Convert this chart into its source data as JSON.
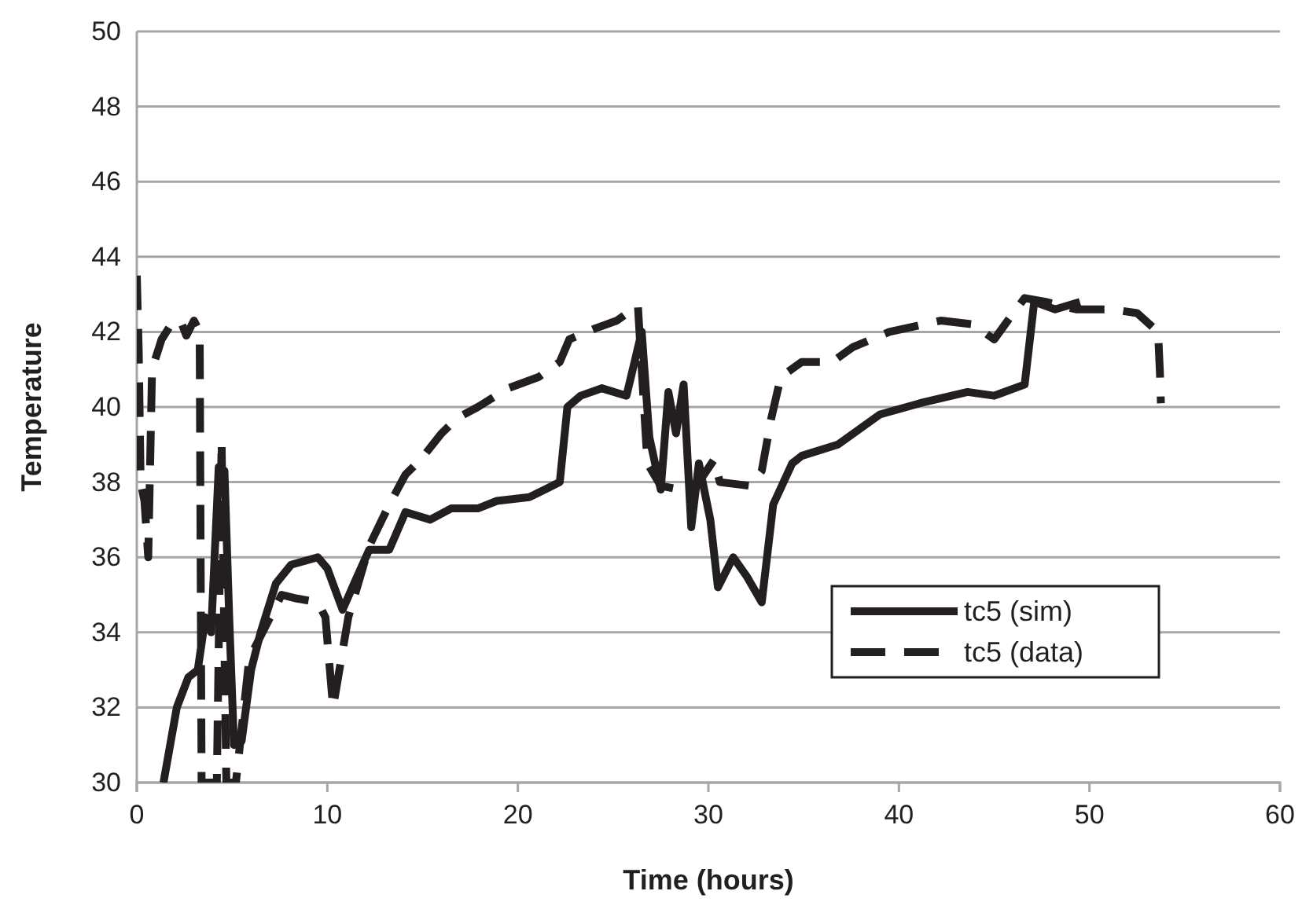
{
  "chart_data": {
    "type": "line",
    "xlabel": "Time (hours)",
    "ylabel": "Temperature",
    "xlim": [
      0,
      60
    ],
    "xticks": [
      0,
      10,
      20,
      30,
      40,
      50,
      60
    ],
    "ylim": [
      30,
      50
    ],
    "yticks": [
      30,
      32,
      34,
      36,
      38,
      40,
      42,
      44,
      46,
      48,
      50
    ],
    "grid": "y",
    "legend": "bottom right",
    "marker": "none",
    "series": [
      {
        "name": "tc5 (sim)",
        "color": "#231f20",
        "line_style": "solid",
        "x": [
          1.4,
          2.1,
          2.7,
          3.2,
          3.6,
          3.9,
          4.3,
          4.6,
          4.85,
          5.1,
          5.5,
          6.0,
          6.5,
          7.3,
          8.1,
          9.5,
          10,
          10.8,
          11.4,
          12.2,
          13.25,
          14.1,
          15.4,
          16.5,
          17.9,
          18.9,
          20.6,
          21.4,
          22.2,
          22.6,
          23.3,
          24.4,
          25.7,
          26.5,
          26.9,
          27.5,
          27.9,
          28.3,
          28.7,
          29.1,
          29.5,
          30.1,
          30.5,
          31.3,
          32,
          32.8,
          33.4,
          34.4,
          34.9,
          36.8,
          39,
          41.1,
          43.6,
          45,
          46.6,
          47.1,
          48.2,
          49.5
        ],
        "values": [
          30,
          32,
          32.8,
          33,
          34.4,
          34,
          38.4,
          38.3,
          34.4,
          31,
          31.1,
          33,
          34,
          35.3,
          35.8,
          36,
          35.7,
          34.6,
          35.3,
          36.2,
          36.2,
          37.2,
          37,
          37.3,
          37.3,
          37.5,
          37.6,
          37.8,
          38,
          40,
          40.3,
          40.5,
          40.3,
          42,
          39.2,
          37.8,
          40.4,
          39.3,
          40.6,
          36.8,
          38.5,
          37,
          35.2,
          36,
          35.5,
          34.8,
          37.4,
          38.5,
          38.7,
          39,
          39.8,
          40.1,
          40.4,
          40.3,
          40.6,
          42.8,
          42.6,
          42.8
        ]
      },
      {
        "name": "tc5 (data)",
        "color": "#231f20",
        "line_style": "dashed",
        "x": [
          0,
          0.1,
          0.2,
          0.4,
          0.6,
          0.8,
          1.3,
          1.8,
          2.3,
          2.6,
          3.0,
          3.3,
          3.4,
          4.2,
          4.45,
          4.7,
          5.2,
          5.9,
          7.6,
          8.4,
          9.5,
          9.9,
          10.3,
          10.8,
          11.1,
          12.2,
          13.25,
          14.1,
          14.9,
          16,
          16.8,
          17.9,
          19.5,
          21.1,
          22.2,
          22.7,
          24.1,
          25.2,
          26.3,
          26.8,
          27.5,
          28.5,
          29.5,
          30.3,
          30.6,
          32.2,
          32.8,
          33.3,
          33.8,
          34.9,
          36.5,
          37.6,
          39.5,
          42.2,
          43.9,
          45,
          46,
          46.6,
          47.7,
          49.3,
          51.2,
          52.5,
          53.6,
          53.7,
          53.75
        ],
        "values": [
          43.5,
          41.5,
          38,
          37.5,
          36,
          41,
          41.8,
          42.2,
          42.3,
          41.9,
          42.3,
          42,
          30,
          30,
          39.1,
          30,
          30,
          33.3,
          35,
          34.9,
          34.8,
          34.4,
          32,
          33.5,
          34.4,
          36.3,
          37.4,
          38.2,
          38.6,
          39.3,
          39.7,
          40,
          40.5,
          40.8,
          41.2,
          41.8,
          42.1,
          42.3,
          42.7,
          38.5,
          37.9,
          37.8,
          38,
          38.6,
          38,
          37.9,
          38.3,
          39.7,
          40.8,
          41.2,
          41.2,
          41.6,
          42,
          42.3,
          42.2,
          41.8,
          42.5,
          42.9,
          42.8,
          42.6,
          42.6,
          42.5,
          42,
          40.9,
          40.1
        ]
      }
    ]
  }
}
